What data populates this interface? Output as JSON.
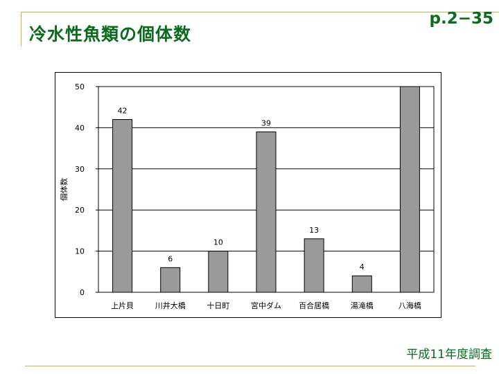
{
  "slide": {
    "title": "冷水性魚類の個体数",
    "page_number": "p.2−35",
    "footnote": "平成11年度調査"
  },
  "colors": {
    "title": "#0a6b1f",
    "rule": "#c7b24b",
    "bar": "#9a9a9a"
  },
  "chart_data": {
    "type": "bar",
    "categories": [
      "上片貝",
      "川井大橋",
      "十日町",
      "宮中ダム",
      "百合居橋",
      "湯滝橋",
      "八海橋"
    ],
    "values": [
      42,
      6,
      10,
      39,
      13,
      4,
      50
    ],
    "data_labels": [
      "42",
      "6",
      "10",
      "39",
      "13",
      "4",
      ""
    ],
    "ylabel": "個体数",
    "ylim": [
      0,
      50
    ],
    "yticks": [
      0,
      10,
      20,
      30,
      40,
      50
    ],
    "grid": true,
    "legend": "none"
  }
}
